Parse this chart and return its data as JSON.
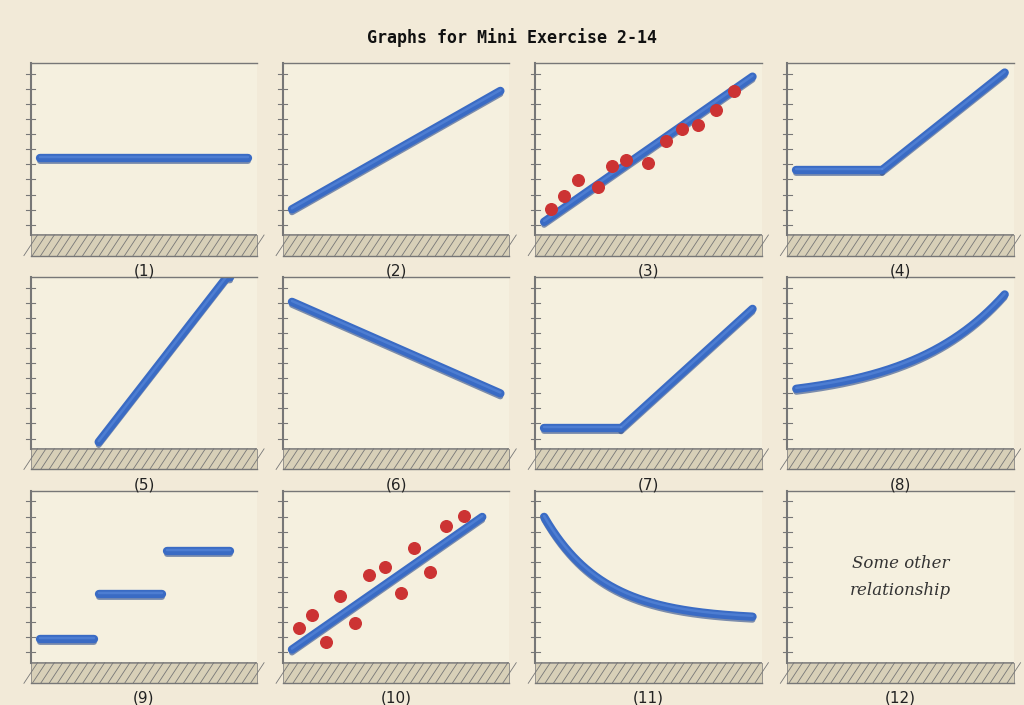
{
  "title": "Graphs for Mini Exercise 2-14",
  "title_fontsize": 12,
  "title_fontfamily": "monospace",
  "bg_color": "#f2ead8",
  "panel_bg": "#f5f0df",
  "line_color": "#3a6bc4",
  "line_color_dark": "#2a4a8a",
  "scatter_color": "#cc3333",
  "line_width": 6,
  "label_fontsize": 11,
  "labels": [
    "(1)",
    "(2)",
    "(3)",
    "(4)",
    "(5)",
    "(6)",
    "(7)",
    "(8)",
    "(9)",
    "(10)",
    "(11)",
    "(12)"
  ],
  "nrows": 3,
  "ncols": 4,
  "hatch_color": "#aaaaaa",
  "border_color": "#777777",
  "tick_color": "#666666"
}
